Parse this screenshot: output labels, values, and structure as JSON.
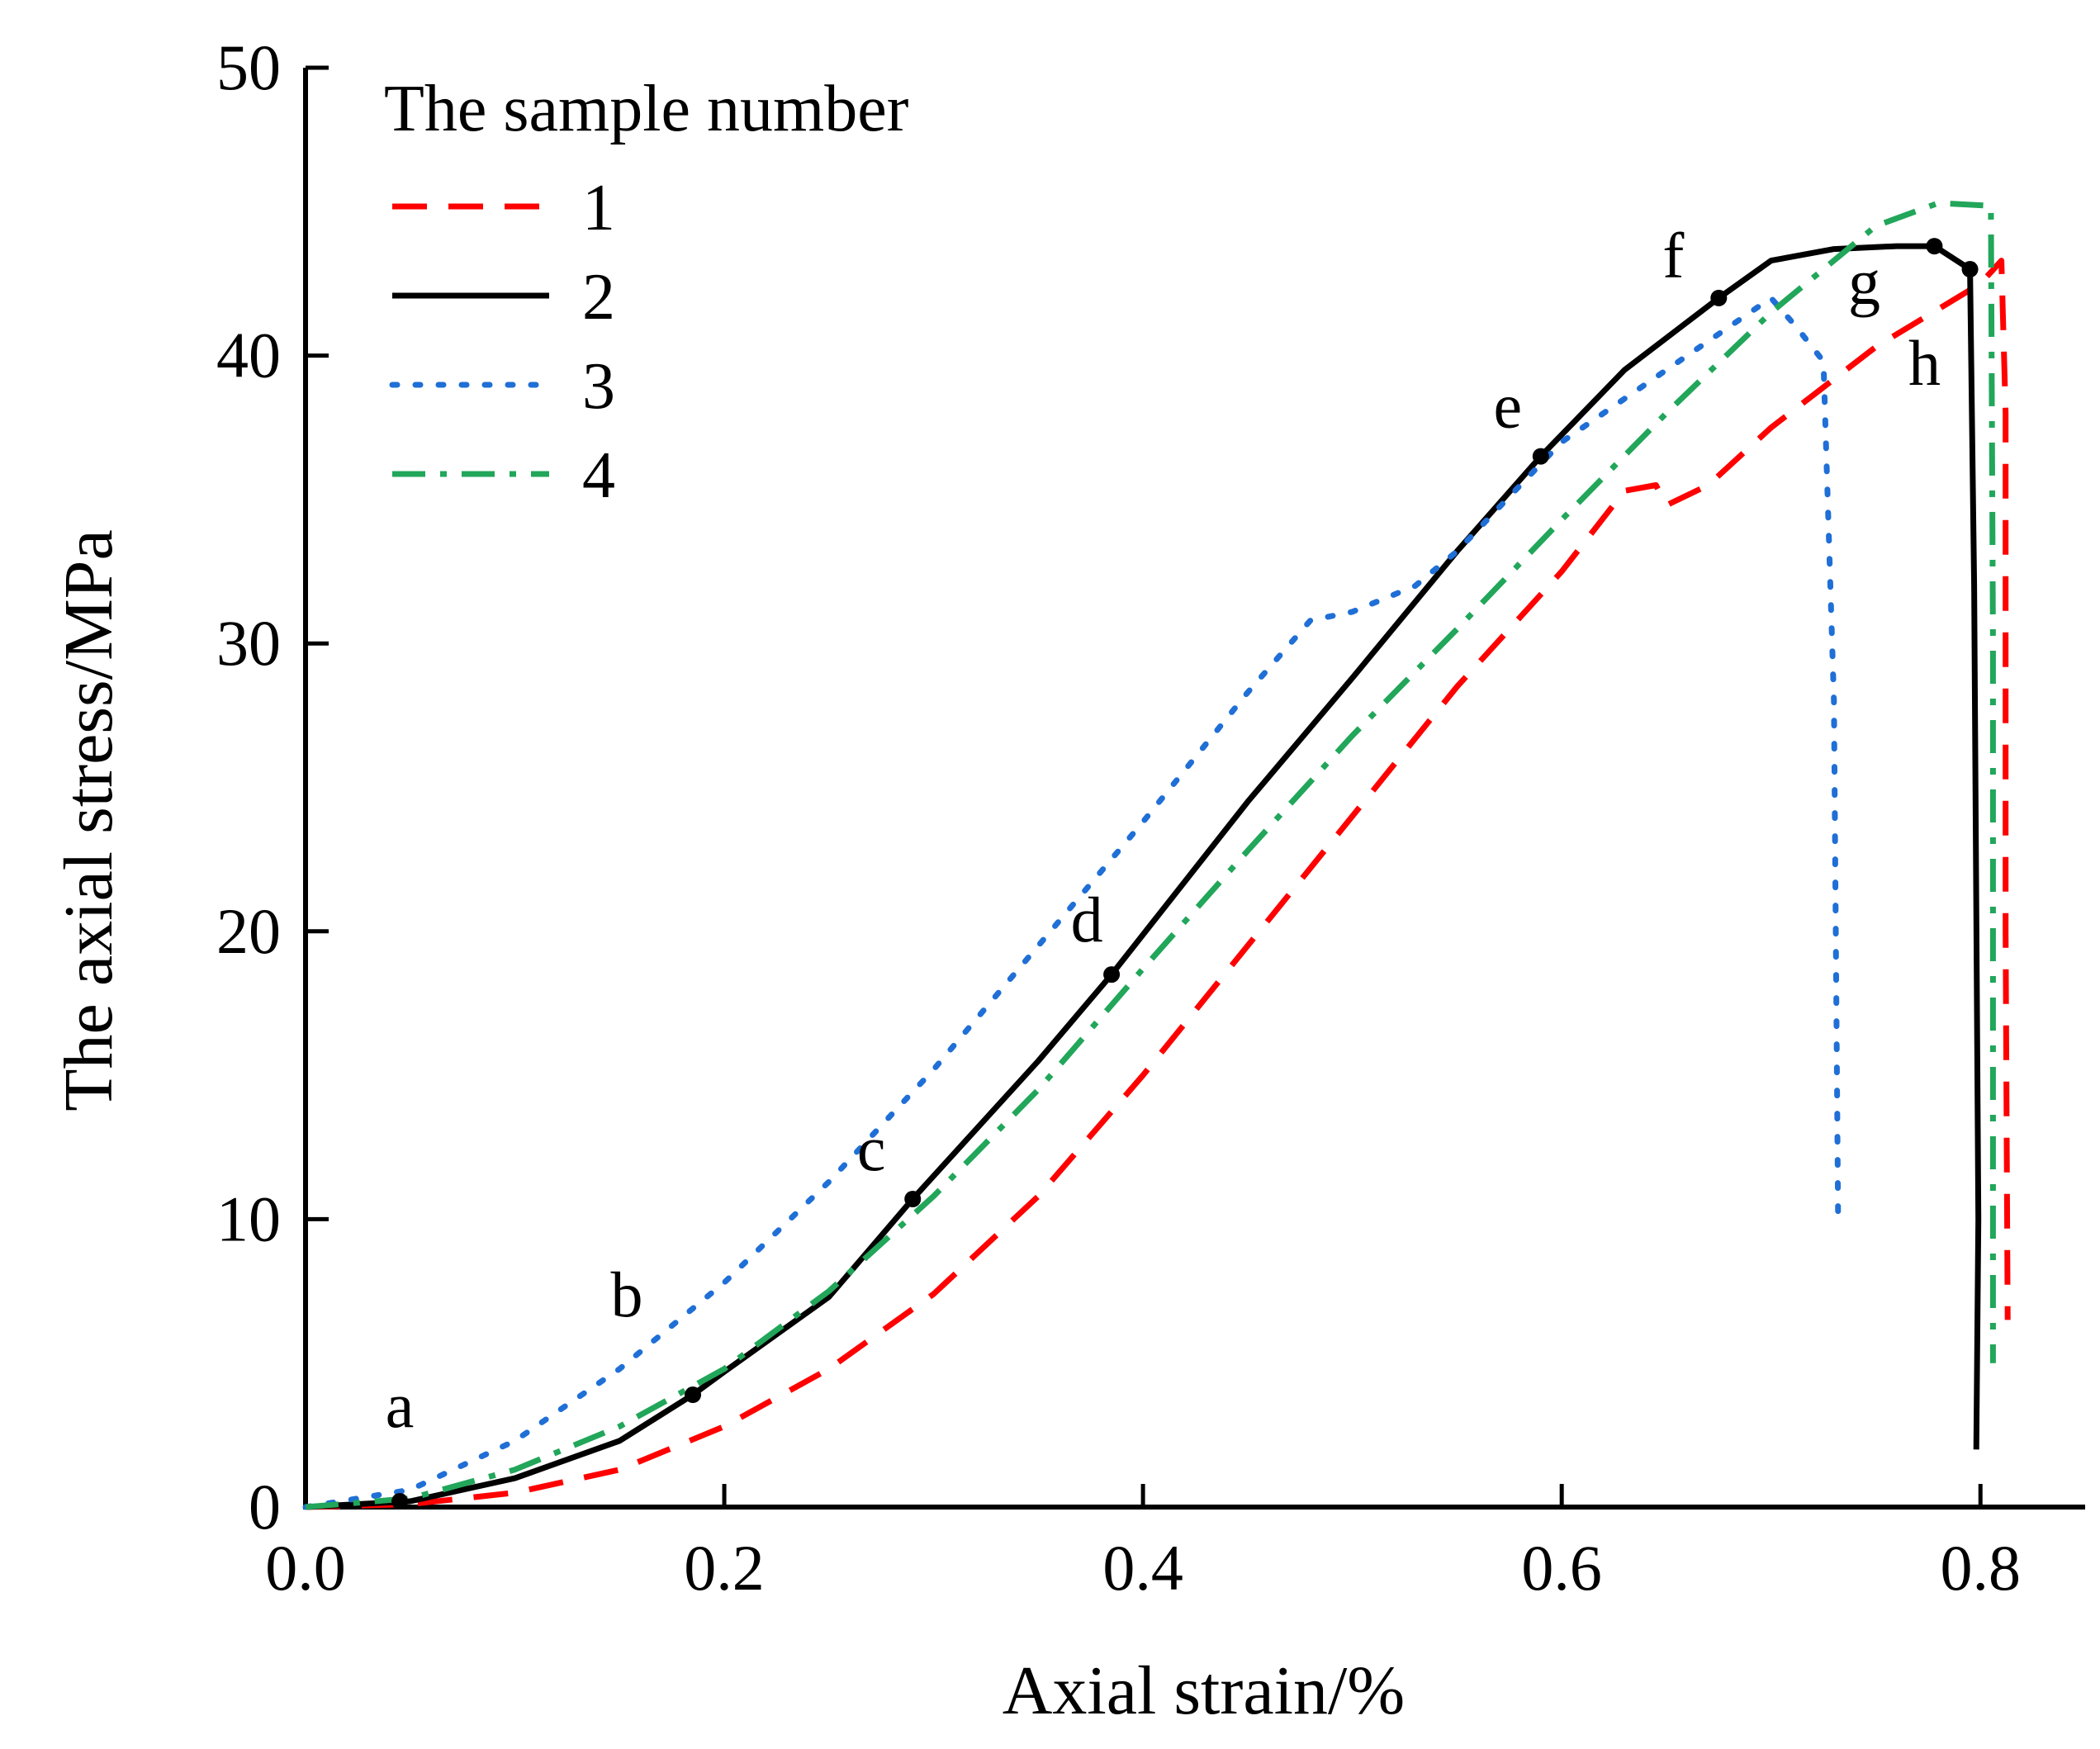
{
  "chart_data": {
    "type": "line",
    "title": "",
    "xlabel": "Axial strain/%",
    "ylabel": "The axial stress/MPa",
    "xlim": [
      0.0,
      0.85
    ],
    "ylim": [
      0,
      50
    ],
    "xticks": [
      0.0,
      0.2,
      0.4,
      0.6,
      0.8
    ],
    "xtick_labels": [
      "0.0",
      "0.2",
      "0.4",
      "0.6",
      "0.8"
    ],
    "yticks": [
      0,
      10,
      20,
      30,
      40,
      50
    ],
    "ytick_labels": [
      "0",
      "10",
      "20",
      "30",
      "40",
      "50"
    ],
    "grid": false,
    "legend": {
      "title": "The sample number",
      "placement": "top-left"
    },
    "series": [
      {
        "name": "1",
        "color": "#ff0000",
        "style": "dashed",
        "points": [
          [
            0,
            0
          ],
          [
            0.05,
            0.1
          ],
          [
            0.1,
            0.5
          ],
          [
            0.15,
            1.3
          ],
          [
            0.2,
            2.8
          ],
          [
            0.25,
            4.8
          ],
          [
            0.3,
            7.4
          ],
          [
            0.35,
            10.8
          ],
          [
            0.4,
            15.0
          ],
          [
            0.45,
            19.5
          ],
          [
            0.5,
            24.0
          ],
          [
            0.55,
            28.5
          ],
          [
            0.6,
            32.5
          ],
          [
            0.63,
            35.3
          ],
          [
            0.645,
            35.5
          ],
          [
            0.65,
            34.8
          ],
          [
            0.67,
            35.5
          ],
          [
            0.7,
            37.5
          ],
          [
            0.75,
            40.3
          ],
          [
            0.8,
            42.5
          ],
          [
            0.81,
            43.3
          ],
          [
            0.812,
            38.0
          ],
          [
            0.812,
            20.0
          ],
          [
            0.813,
            6.5
          ]
        ]
      },
      {
        "name": "2",
        "color": "#000000",
        "style": "solid",
        "points": [
          [
            0,
            0
          ],
          [
            0.05,
            0.2
          ],
          [
            0.1,
            1.0
          ],
          [
            0.15,
            2.3
          ],
          [
            0.185,
            3.9
          ],
          [
            0.2,
            4.7
          ],
          [
            0.25,
            7.3
          ],
          [
            0.29,
            10.7
          ],
          [
            0.35,
            15.5
          ],
          [
            0.385,
            18.5
          ],
          [
            0.45,
            24.5
          ],
          [
            0.5,
            28.8
          ],
          [
            0.55,
            33.2
          ],
          [
            0.59,
            36.5
          ],
          [
            0.63,
            39.5
          ],
          [
            0.675,
            42.0
          ],
          [
            0.7,
            43.3
          ],
          [
            0.73,
            43.7
          ],
          [
            0.76,
            43.8
          ],
          [
            0.778,
            43.8
          ],
          [
            0.795,
            43.0
          ],
          [
            0.797,
            32.0
          ],
          [
            0.799,
            10.0
          ],
          [
            0.798,
            2.0
          ]
        ]
      },
      {
        "name": "3",
        "color": "#1f6fd6",
        "style": "dotted",
        "points": [
          [
            0,
            0
          ],
          [
            0.05,
            0.6
          ],
          [
            0.1,
            2.3
          ],
          [
            0.15,
            4.8
          ],
          [
            0.2,
            7.8
          ],
          [
            0.25,
            11.3
          ],
          [
            0.3,
            15.2
          ],
          [
            0.35,
            19.5
          ],
          [
            0.4,
            23.8
          ],
          [
            0.45,
            28.3
          ],
          [
            0.48,
            30.8
          ],
          [
            0.5,
            31.1
          ],
          [
            0.53,
            32.0
          ],
          [
            0.55,
            33.2
          ],
          [
            0.6,
            37.0
          ],
          [
            0.65,
            39.5
          ],
          [
            0.68,
            41.0
          ],
          [
            0.7,
            42.0
          ],
          [
            0.712,
            41.0
          ],
          [
            0.725,
            39.8
          ],
          [
            0.73,
            28.0
          ],
          [
            0.732,
            10.2
          ]
        ]
      },
      {
        "name": "4",
        "color": "#21a65a",
        "style": "dashdot",
        "points": [
          [
            0,
            0
          ],
          [
            0.05,
            0.3
          ],
          [
            0.1,
            1.3
          ],
          [
            0.15,
            2.8
          ],
          [
            0.2,
            4.8
          ],
          [
            0.25,
            7.5
          ],
          [
            0.3,
            10.8
          ],
          [
            0.35,
            14.5
          ],
          [
            0.4,
            18.7
          ],
          [
            0.45,
            22.8
          ],
          [
            0.5,
            26.8
          ],
          [
            0.55,
            30.5
          ],
          [
            0.6,
            34.3
          ],
          [
            0.65,
            38.0
          ],
          [
            0.7,
            41.5
          ],
          [
            0.75,
            44.5
          ],
          [
            0.78,
            45.3
          ],
          [
            0.805,
            45.2
          ],
          [
            0.806,
            30.0
          ],
          [
            0.806,
            5.0
          ]
        ]
      }
    ],
    "annotations": [
      {
        "label": "a",
        "x": 0.045,
        "y": 0.2,
        "marker": true
      },
      {
        "label": "b",
        "x": 0.185,
        "y": 3.9,
        "marker": true
      },
      {
        "label": "c",
        "x": 0.29,
        "y": 10.7,
        "marker": true
      },
      {
        "label": "d",
        "x": 0.385,
        "y": 18.5,
        "marker": true
      },
      {
        "label": "e",
        "x": 0.59,
        "y": 36.5,
        "marker": true
      },
      {
        "label": "f",
        "x": 0.675,
        "y": 42.0,
        "marker": true
      },
      {
        "label": "g",
        "x": 0.778,
        "y": 43.8,
        "marker": true
      },
      {
        "label": "h",
        "x": 0.795,
        "y": 43.0,
        "marker": true
      }
    ]
  }
}
